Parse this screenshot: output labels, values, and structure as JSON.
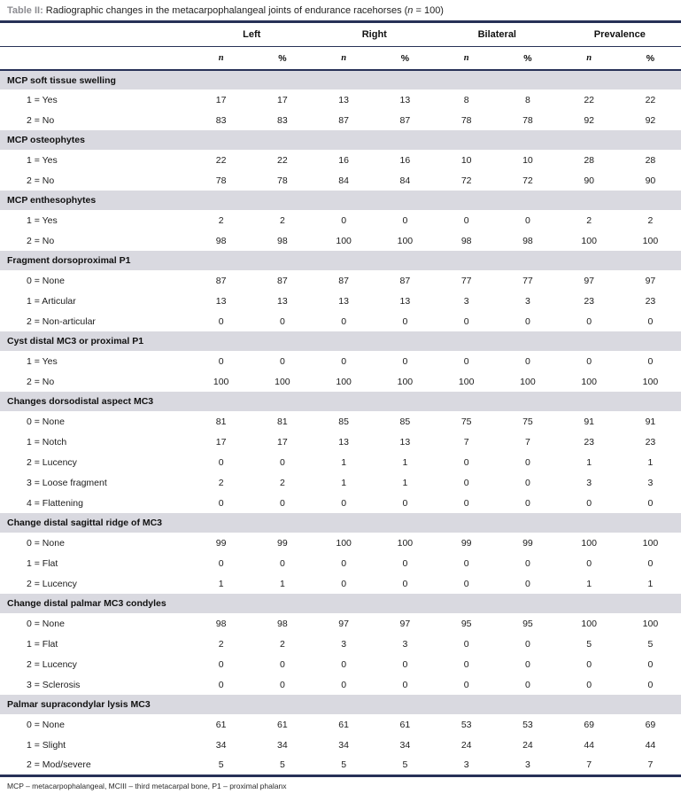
{
  "title": {
    "prefix": "Table II:",
    "body": " Radiographic changes in the metacarpophalangeal joints of endurance racehorses (",
    "n_symbol": "n",
    "suffix": " = 100)"
  },
  "table": {
    "columns": {
      "groups": [
        "Left",
        "Right",
        "Bilateral",
        "Prevalence"
      ],
      "sub": [
        "n",
        "%"
      ]
    },
    "sections": [
      {
        "header": "MCP soft tissue swelling",
        "rows": [
          {
            "label": "1 = Yes",
            "values": [
              17,
              17,
              13,
              13,
              8,
              8,
              22,
              22
            ]
          },
          {
            "label": "2 = No",
            "values": [
              83,
              83,
              87,
              87,
              78,
              78,
              92,
              92
            ]
          }
        ]
      },
      {
        "header": "MCP osteophytes",
        "rows": [
          {
            "label": "1 = Yes",
            "values": [
              22,
              22,
              16,
              16,
              10,
              10,
              28,
              28
            ]
          },
          {
            "label": "2 = No",
            "values": [
              78,
              78,
              84,
              84,
              72,
              72,
              90,
              90
            ]
          }
        ]
      },
      {
        "header": "MCP enthesophytes",
        "rows": [
          {
            "label": "1 = Yes",
            "values": [
              2,
              2,
              0,
              0,
              0,
              0,
              2,
              2
            ]
          },
          {
            "label": "2 = No",
            "values": [
              98,
              98,
              100,
              100,
              98,
              98,
              100,
              100
            ]
          }
        ]
      },
      {
        "header": "Fragment dorsoproximal P1",
        "rows": [
          {
            "label": "0 = None",
            "values": [
              87,
              87,
              87,
              87,
              77,
              77,
              97,
              97
            ]
          },
          {
            "label": "1 = Articular",
            "values": [
              13,
              13,
              13,
              13,
              3,
              3,
              23,
              23
            ]
          },
          {
            "label": "2 = Non-articular",
            "values": [
              0,
              0,
              0,
              0,
              0,
              0,
              0,
              0
            ]
          }
        ]
      },
      {
        "header": "Cyst distal MC3 or proximal P1",
        "rows": [
          {
            "label": "1 = Yes",
            "values": [
              0,
              0,
              0,
              0,
              0,
              0,
              0,
              0
            ]
          },
          {
            "label": "2 = No",
            "values": [
              100,
              100,
              100,
              100,
              100,
              100,
              100,
              100
            ]
          }
        ]
      },
      {
        "header": "Changes dorsodistal aspect MC3",
        "rows": [
          {
            "label": "0 = None",
            "values": [
              81,
              81,
              85,
              85,
              75,
              75,
              91,
              91
            ]
          },
          {
            "label": "1 = Notch",
            "values": [
              17,
              17,
              13,
              13,
              7,
              7,
              23,
              23
            ]
          },
          {
            "label": "2 = Lucency",
            "values": [
              0,
              0,
              1,
              1,
              0,
              0,
              1,
              1
            ]
          },
          {
            "label": "3 = Loose fragment",
            "values": [
              2,
              2,
              1,
              1,
              0,
              0,
              3,
              3
            ]
          },
          {
            "label": "4 = Flattening",
            "values": [
              0,
              0,
              0,
              0,
              0,
              0,
              0,
              0
            ]
          }
        ]
      },
      {
        "header": "Change distal sagittal ridge of MC3",
        "rows": [
          {
            "label": "0 = None",
            "values": [
              99,
              99,
              100,
              100,
              99,
              99,
              100,
              100
            ]
          },
          {
            "label": "1 = Flat",
            "values": [
              0,
              0,
              0,
              0,
              0,
              0,
              0,
              0
            ]
          },
          {
            "label": "2 = Lucency",
            "values": [
              1,
              1,
              0,
              0,
              0,
              0,
              1,
              1
            ]
          }
        ]
      },
      {
        "header": "Change distal palmar MC3 condyles",
        "rows": [
          {
            "label": "0 = None",
            "values": [
              98,
              98,
              97,
              97,
              95,
              95,
              100,
              100
            ]
          },
          {
            "label": "1 = Flat",
            "values": [
              2,
              2,
              3,
              3,
              0,
              0,
              5,
              5
            ]
          },
          {
            "label": "2 = Lucency",
            "values": [
              0,
              0,
              0,
              0,
              0,
              0,
              0,
              0
            ]
          },
          {
            "label": "3 = Sclerosis",
            "values": [
              0,
              0,
              0,
              0,
              0,
              0,
              0,
              0
            ]
          }
        ]
      },
      {
        "header": "Palmar supracondylar lysis MC3",
        "rows": [
          {
            "label": "0 = None",
            "values": [
              61,
              61,
              61,
              61,
              53,
              53,
              69,
              69
            ]
          },
          {
            "label": "1 = Slight",
            "values": [
              34,
              34,
              34,
              34,
              24,
              24,
              44,
              44
            ]
          },
          {
            "label": "2 = Mod/severe",
            "values": [
              5,
              5,
              5,
              5,
              3,
              3,
              7,
              7
            ]
          }
        ]
      }
    ]
  },
  "footnote": "MCP – metacarpophalangeal, MCIII – third metacarpal bone, P1 – proximal phalanx",
  "colors": {
    "rule_navy": "#273157",
    "section_band": "#d9d9e0",
    "title_prefix_gray": "#8d8d92"
  }
}
